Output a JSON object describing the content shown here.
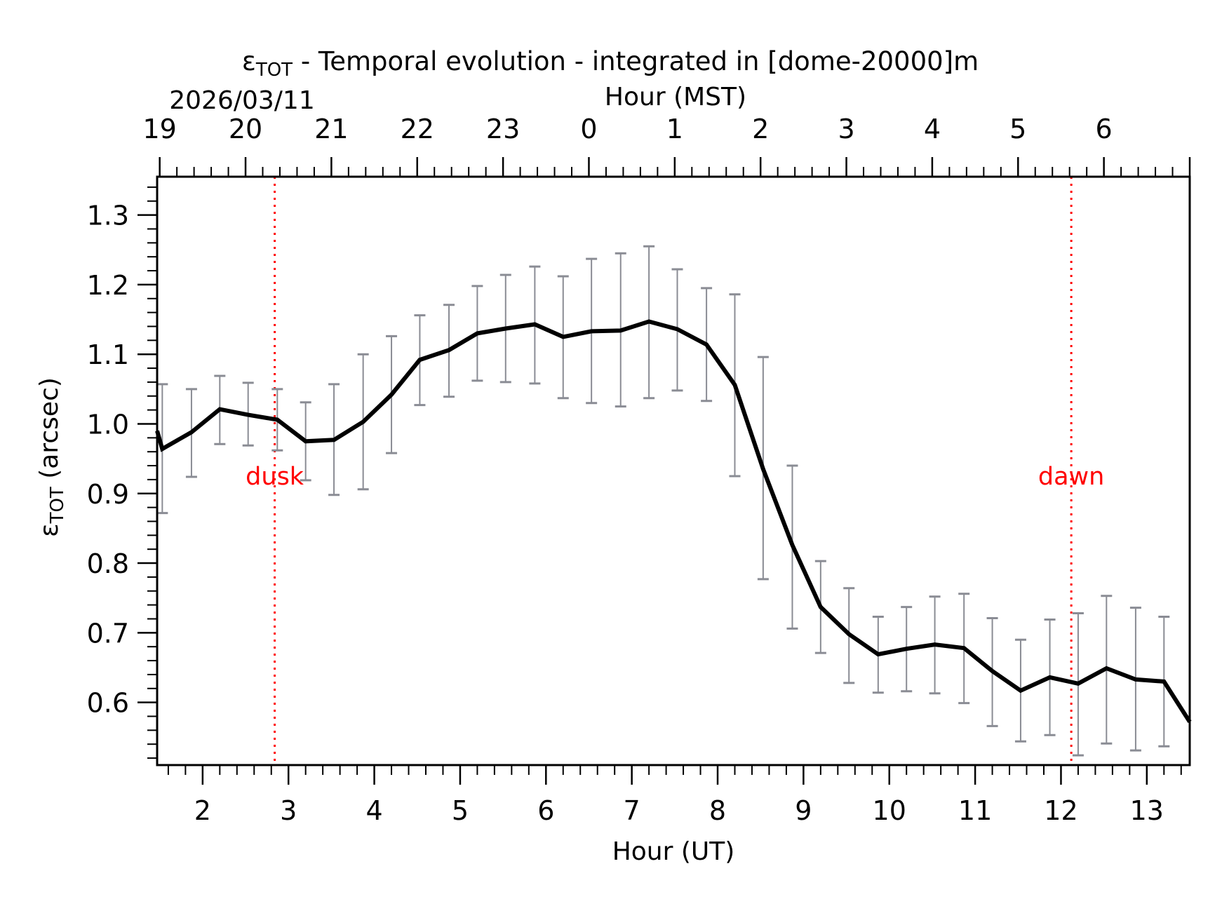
{
  "chart_data": {
    "type": "line",
    "title": "εTOT - Temporal evolution - integrated in [dome-20000]m",
    "title_symbol": "ε",
    "title_subscript": "TOT",
    "title_rest": " - Temporal evolution - integrated in [dome-20000]m",
    "xlabel": "Hour (UT)",
    "ylabel_symbol": "ε",
    "ylabel_subscript": "TOT",
    "ylabel_rest": " (arcsec)",
    "top_xlabel": "Hour (MST)",
    "date_label": "2026/03/11",
    "xlim": [
      1.47,
      13.5
    ],
    "ylim": [
      0.51,
      1.355
    ],
    "grid": false,
    "x_ticks": [
      2,
      3,
      4,
      5,
      6,
      7,
      8,
      9,
      10,
      11,
      12,
      13
    ],
    "x_tick_labels": [
      "2",
      "3",
      "4",
      "5",
      "6",
      "7",
      "8",
      "9",
      "10",
      "11",
      "12",
      "13"
    ],
    "top_x_ticks_ut": [
      1.5,
      2.5,
      3.5,
      4.5,
      5.5,
      6.5,
      7.5,
      8.5,
      9.5,
      10.5,
      11.5,
      12.5,
      13.5
    ],
    "top_x_tick_labels": [
      "19",
      "20",
      "21",
      "22",
      "23",
      "0",
      "1",
      "2",
      "3",
      "4",
      "5",
      "6"
    ],
    "y_ticks": [
      0.6,
      0.7,
      0.8,
      0.9,
      1.0,
      1.1,
      1.2,
      1.3
    ],
    "y_tick_labels": [
      "0.6",
      "0.7",
      "0.8",
      "0.9",
      "1.0",
      "1.1",
      "1.2",
      "1.3"
    ],
    "series": [
      {
        "name": "εTOT",
        "color": "#000000",
        "x": [
          1.47,
          1.53,
          1.87,
          2.2,
          2.53,
          2.87,
          3.2,
          3.53,
          3.87,
          4.2,
          4.53,
          4.87,
          5.2,
          5.53,
          5.87,
          6.2,
          6.53,
          6.87,
          7.2,
          7.53,
          7.87,
          8.2,
          8.53,
          8.87,
          9.2,
          9.53,
          9.87,
          10.2,
          10.53,
          10.87,
          11.2,
          11.53,
          11.87,
          12.2,
          12.53,
          12.87,
          13.2,
          13.5
        ],
        "y": [
          0.99,
          0.964,
          0.988,
          1.021,
          1.013,
          1.006,
          0.975,
          0.977,
          1.003,
          1.042,
          1.092,
          1.106,
          1.13,
          1.137,
          1.143,
          1.125,
          1.133,
          1.134,
          1.147,
          1.136,
          1.114,
          1.056,
          0.935,
          0.826,
          0.737,
          0.698,
          0.669,
          0.677,
          0.683,
          0.678,
          0.645,
          0.617,
          0.636,
          0.627,
          0.649,
          0.633,
          0.63,
          0.572
        ]
      }
    ],
    "error_bars": {
      "color": "#8a8c94",
      "x": [
        1.53,
        1.87,
        2.2,
        2.53,
        2.87,
        3.2,
        3.53,
        3.87,
        4.2,
        4.53,
        4.87,
        5.2,
        5.53,
        5.87,
        6.2,
        6.53,
        6.87,
        7.2,
        7.53,
        7.87,
        8.2,
        8.53,
        8.87,
        9.2,
        9.53,
        9.87,
        10.2,
        10.53,
        10.87,
        11.2,
        11.53,
        11.87,
        12.2,
        12.53,
        12.87,
        13.2
      ],
      "low": [
        0.872,
        0.924,
        0.971,
        0.969,
        0.962,
        0.919,
        0.898,
        0.906,
        0.958,
        1.027,
        1.039,
        1.062,
        1.06,
        1.058,
        1.037,
        1.03,
        1.025,
        1.037,
        1.048,
        1.033,
        0.925,
        0.777,
        0.706,
        0.671,
        0.628,
        0.614,
        0.616,
        0.613,
        0.599,
        0.566,
        0.544,
        0.553,
        0.524,
        0.541,
        0.531,
        0.537
      ],
      "high": [
        1.057,
        1.05,
        1.069,
        1.059,
        1.05,
        1.031,
        1.057,
        1.1,
        1.126,
        1.156,
        1.171,
        1.198,
        1.214,
        1.226,
        1.212,
        1.237,
        1.245,
        1.255,
        1.222,
        1.195,
        1.186,
        1.096,
        0.94,
        0.803,
        0.764,
        0.723,
        0.737,
        0.752,
        0.756,
        0.721,
        0.69,
        0.719,
        0.728,
        0.753,
        0.736,
        0.723
      ]
    },
    "annotations": [
      {
        "label": "dusk",
        "x": 2.84,
        "label_y": 0.925,
        "color": "#ff0000",
        "style": "dotted vertical line"
      },
      {
        "label": "dawn",
        "x": 12.12,
        "label_y": 0.925,
        "color": "#ff0000",
        "style": "dotted vertical line"
      }
    ]
  }
}
